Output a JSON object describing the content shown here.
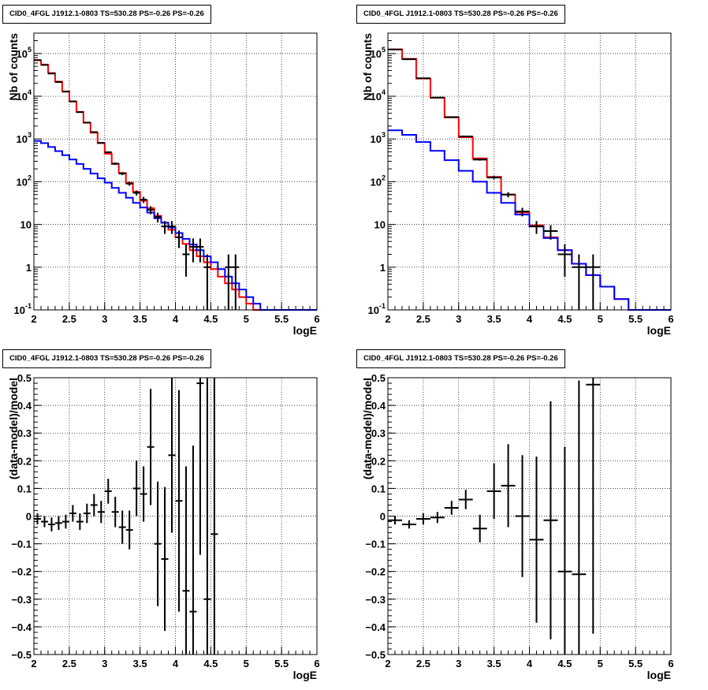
{
  "title": "CID0_4FGL J1912.1-0803 TS=530.28 PS=-0.26 PS=-0.26",
  "chart_data": [
    {
      "type": "line",
      "title": "CID0_4FGL J1912.1-0803 TS=530.28 PS=-0.26 PS=-0.26",
      "xlabel": "logE",
      "ylabel": "Nb of counts",
      "xlim": [
        2,
        6
      ],
      "ylim": [
        0.1,
        300000
      ],
      "yscale": "log",
      "grid": true,
      "xticks": [
        "2",
        "2.5",
        "3",
        "3.5",
        "4",
        "4.5",
        "5",
        "5.5",
        "6"
      ],
      "yticks": [
        {
          "base": "10",
          "exp": "-1",
          "value": 0.1
        },
        {
          "base": "1",
          "exp": "",
          "value": 1
        },
        {
          "base": "10",
          "exp": "",
          "value": 10
        },
        {
          "base": "10",
          "exp": "2",
          "value": 100
        },
        {
          "base": "10",
          "exp": "3",
          "value": 1000
        },
        {
          "base": "10",
          "exp": "4",
          "value": 10000
        },
        {
          "base": "10",
          "exp": "5",
          "value": 100000
        }
      ],
      "bin_edges": [
        2.0,
        2.1,
        2.2,
        2.3,
        2.4,
        2.5,
        2.6,
        2.7,
        2.8,
        2.9,
        3.0,
        3.1,
        3.2,
        3.3,
        3.4,
        3.5,
        3.6,
        3.7,
        3.8,
        3.9,
        4.0,
        4.1,
        4.2,
        4.3,
        4.4,
        4.5,
        4.6,
        4.7,
        4.8,
        4.9,
        5.0,
        5.1,
        5.2,
        5.3,
        5.4,
        5.5,
        5.6,
        5.7,
        5.8,
        5.9,
        6.0
      ],
      "series": [
        {
          "color": "#ff0000",
          "kind": "step",
          "values": [
            70000,
            55000,
            35000,
            22000,
            13000,
            7500,
            4300,
            2400,
            1400,
            800,
            450,
            260,
            160,
            95,
            58,
            36,
            24,
            16,
            11,
            7.5,
            5,
            3.5,
            2.5,
            1.8,
            1.3,
            0.9,
            0.6,
            0.42,
            0.3,
            0.2,
            0.14,
            0.1,
            0.1,
            0.1,
            0.1,
            0.1,
            0.1,
            0.1,
            0.1,
            0.1
          ]
        },
        {
          "color": "#0000ff",
          "kind": "step",
          "values": [
            900,
            800,
            650,
            520,
            420,
            330,
            260,
            200,
            155,
            120,
            95,
            72,
            55,
            42,
            32,
            25,
            19,
            14,
            11,
            8.5,
            6.3,
            4.6,
            3.4,
            2.5,
            1.8,
            1.3,
            0.9,
            0.6,
            0.42,
            0.3,
            0.2,
            0.14,
            0.1,
            0.1,
            0.1,
            0.1,
            0.1,
            0.1,
            0.1,
            0.1
          ]
        },
        {
          "color": "#000000",
          "kind": "points",
          "x": [
            2.05,
            2.15,
            2.25,
            2.35,
            2.45,
            2.55,
            2.65,
            2.75,
            2.85,
            2.95,
            3.05,
            3.15,
            3.25,
            3.35,
            3.45,
            3.55,
            3.65,
            3.75,
            3.85,
            3.95,
            4.05,
            4.15,
            4.25,
            4.35,
            4.45,
            4.75,
            4.85
          ],
          "y": [
            70000,
            54000,
            34000,
            21500,
            12800,
            7600,
            4250,
            2420,
            1450,
            810,
            490,
            265,
            155,
            90,
            55,
            38,
            22,
            15,
            9,
            9,
            5,
            2,
            3,
            3,
            1,
            1,
            1
          ],
          "err": [
            270,
            230,
            185,
            150,
            115,
            88,
            66,
            50,
            38,
            29,
            22,
            16,
            12,
            9.5,
            7.4,
            6.2,
            4.7,
            3.9,
            3,
            3,
            2.2,
            1.4,
            1.7,
            1.7,
            0.99,
            0.99,
            0.99
          ]
        }
      ]
    },
    {
      "type": "line",
      "title": "CID0_4FGL J1912.1-0803 TS=530.28 PS=-0.26 PS=-0.26",
      "xlabel": "logE",
      "ylabel": "Nb of counts",
      "xlim": [
        2,
        6
      ],
      "ylim": [
        0.1,
        300000
      ],
      "yscale": "log",
      "grid": true,
      "xticks": [
        "2",
        "2.5",
        "3",
        "3.5",
        "4",
        "4.5",
        "5",
        "5.5",
        "6"
      ],
      "yticks": [
        {
          "base": "10",
          "exp": "-1",
          "value": 0.1
        },
        {
          "base": "1",
          "exp": "",
          "value": 1
        },
        {
          "base": "10",
          "exp": "",
          "value": 10
        },
        {
          "base": "10",
          "exp": "2",
          "value": 100
        },
        {
          "base": "10",
          "exp": "3",
          "value": 1000
        },
        {
          "base": "10",
          "exp": "4",
          "value": 10000
        },
        {
          "base": "10",
          "exp": "5",
          "value": 100000
        }
      ],
      "bin_edges": [
        2.0,
        2.2,
        2.4,
        2.6,
        2.8,
        3.0,
        3.2,
        3.4,
        3.6,
        3.8,
        4.0,
        4.2,
        4.4,
        4.6,
        4.8,
        5.0,
        5.2,
        5.4,
        5.6,
        5.8,
        6.0
      ],
      "series": [
        {
          "color": "#ff0000",
          "kind": "step",
          "values": [
            125000,
            75000,
            26000,
            9200,
            3200,
            1100,
            350,
            130,
            50,
            19,
            9.5,
            5,
            2.5,
            1.2,
            0.65,
            0.35,
            0.18,
            0.1,
            0.1,
            0.1
          ]
        },
        {
          "color": "#0000ff",
          "kind": "step",
          "values": [
            1600,
            1250,
            850,
            530,
            320,
            180,
            100,
            55,
            32,
            17,
            9,
            4.8,
            2.5,
            1.2,
            0.65,
            0.35,
            0.18,
            0.1,
            0.1,
            0.1
          ]
        },
        {
          "color": "#000000",
          "kind": "points",
          "x": [
            2.1,
            2.3,
            2.5,
            2.7,
            2.9,
            3.1,
            3.3,
            3.5,
            3.7,
            3.9,
            4.1,
            4.3,
            4.5,
            4.7,
            4.9
          ],
          "y": [
            124000,
            73500,
            26400,
            9300,
            3250,
            1150,
            330,
            125,
            50,
            20,
            9,
            7,
            2,
            1,
            1
          ],
          "err": [
            350,
            270,
            160,
            96,
            57,
            34,
            18,
            11,
            7,
            4.5,
            3,
            2.6,
            1.4,
            0.99,
            0.99
          ]
        }
      ]
    },
    {
      "type": "scatter",
      "title": "CID0_4FGL J1912.1-0803 TS=530.28 PS=-0.26 PS=-0.26",
      "xlabel": "logE",
      "ylabel": "(data-model)/model",
      "xlim": [
        2,
        6
      ],
      "ylim": [
        -0.5,
        0.5
      ],
      "grid": true,
      "xticks": [
        "2",
        "2.5",
        "3",
        "3.5",
        "4",
        "4.5",
        "5",
        "5.5",
        "6"
      ],
      "yticks": [
        "−0.5",
        "−0.4",
        "−0.3",
        "−0.2",
        "−0.1",
        "0",
        "0.1",
        "0.2",
        "0.3",
        "0.4",
        "0.5"
      ],
      "series": [
        {
          "color": "#000000",
          "kind": "points",
          "xhalf": 0.05,
          "x": [
            2.05,
            2.15,
            2.25,
            2.35,
            2.45,
            2.55,
            2.65,
            2.75,
            2.85,
            2.95,
            3.05,
            3.15,
            3.25,
            3.35,
            3.45,
            3.55,
            3.65,
            3.75,
            3.85,
            3.95,
            4.05,
            4.15,
            4.25,
            4.35,
            4.45,
            4.55
          ],
          "y": [
            -0.01,
            -0.02,
            -0.03,
            -0.025,
            -0.02,
            0.01,
            -0.02,
            0.01,
            0.04,
            0.015,
            0.09,
            0.015,
            -0.04,
            -0.05,
            0.1,
            0.08,
            0.25,
            -0.1,
            -0.155,
            0.22,
            0.055,
            -0.27,
            -0.345,
            0.48,
            -0.3,
            -0.065
          ],
          "err": [
            0.02,
            0.02,
            0.025,
            0.025,
            0.025,
            0.03,
            0.03,
            0.035,
            0.04,
            0.04,
            0.045,
            0.055,
            0.06,
            0.07,
            0.1,
            0.1,
            0.21,
            0.225,
            0.26,
            0.28,
            0.4,
            0.45,
            0.6,
            0.62,
            0.9,
            0.9
          ]
        }
      ]
    },
    {
      "type": "scatter",
      "title": "CID0_4FGL J1912.1-0803 TS=530.28 PS=-0.26 PS=-0.26",
      "xlabel": "logE",
      "ylabel": "(data-model)/model",
      "xlim": [
        2,
        6
      ],
      "ylim": [
        -0.5,
        0.5
      ],
      "grid": true,
      "xticks": [
        "2",
        "2.5",
        "3",
        "3.5",
        "4",
        "4.5",
        "5",
        "5.5",
        "6"
      ],
      "yticks": [
        "−0.5",
        "−0.4",
        "−0.3",
        "−0.2",
        "−0.1",
        "0",
        "0.1",
        "0.2",
        "0.3",
        "0.4",
        "0.5"
      ],
      "series": [
        {
          "color": "#000000",
          "kind": "points",
          "xhalf": 0.1,
          "x": [
            2.1,
            2.3,
            2.5,
            2.7,
            2.9,
            3.1,
            3.3,
            3.5,
            3.7,
            3.9,
            4.1,
            4.3,
            4.5,
            4.7,
            4.9
          ],
          "y": [
            -0.015,
            -0.03,
            -0.01,
            -0.005,
            0.03,
            0.06,
            -0.045,
            0.09,
            0.11,
            0.0,
            -0.085,
            -0.015,
            -0.2,
            -0.21,
            0.475
          ],
          "err": [
            0.015,
            0.015,
            0.02,
            0.02,
            0.025,
            0.035,
            0.05,
            0.1,
            0.15,
            0.22,
            0.3,
            0.43,
            0.45,
            0.7,
            0.9
          ]
        }
      ]
    }
  ]
}
